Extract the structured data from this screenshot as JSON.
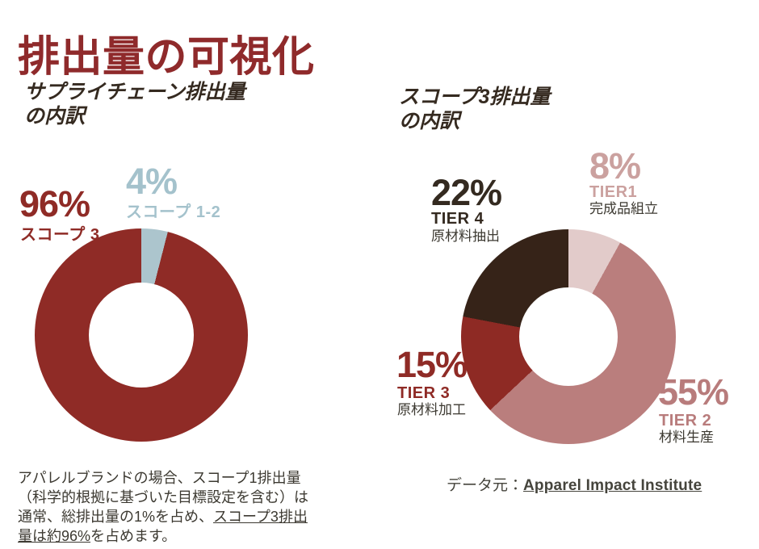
{
  "page_title": "排出量の可視化",
  "left_chart": {
    "title_line1": "サプライチェーン排出量",
    "title_line2": "の内訳"
  },
  "right_chart": {
    "title_line1": "スコープ3排出量",
    "title_line2": "の内訳"
  },
  "chart_data": [
    {
      "type": "donut",
      "title": "サプライチェーン排出量の内訳",
      "start_deg": 14.4,
      "slices": [
        {
          "name": "スコープ 3",
          "pct": 96,
          "pct_label": "96%",
          "color": "#8F2B26"
        },
        {
          "name": "スコープ 1-2",
          "pct": 4,
          "pct_label": "4%",
          "color": "#ACC5CD"
        }
      ]
    },
    {
      "type": "donut",
      "title": "スコープ3排出量の内訳",
      "start_deg": 0,
      "slices": [
        {
          "name": "TIER1",
          "desc": "完成品組立",
          "pct": 8,
          "pct_label": "8%",
          "color": "#E2CBCA"
        },
        {
          "name": "TIER 2",
          "desc": "材料生産",
          "pct": 55,
          "pct_label": "55%",
          "color": "#BA7E7D"
        },
        {
          "name": "TIER 3",
          "desc": "原材料加工",
          "pct": 15,
          "pct_label": "15%",
          "color": "#8E2A24"
        },
        {
          "name": "TIER 4",
          "desc": "原材料抽出",
          "pct": 22,
          "pct_label": "22%",
          "color": "#362318"
        }
      ]
    }
  ],
  "footnote": {
    "text_before": "アパレルブランドの場合、スコープ1排出量（科学的根拠に基づいた目標設定を含む）は通常、総排出量の1%を占め、",
    "link_text": "スコープ3排出量は約96%",
    "text_after": "を占めます。"
  },
  "source": {
    "prefix": "データ元：",
    "link_label": "Apparel Impact Institute"
  },
  "colors": {
    "title_red": "#8F2A2B",
    "brand_red": "#8F2B26",
    "light_blue": "#ACC5CD",
    "pink": "#E2CBCA",
    "rose": "#BA7E7D",
    "dark_brown": "#362318",
    "body_text": "#3C3931"
  }
}
